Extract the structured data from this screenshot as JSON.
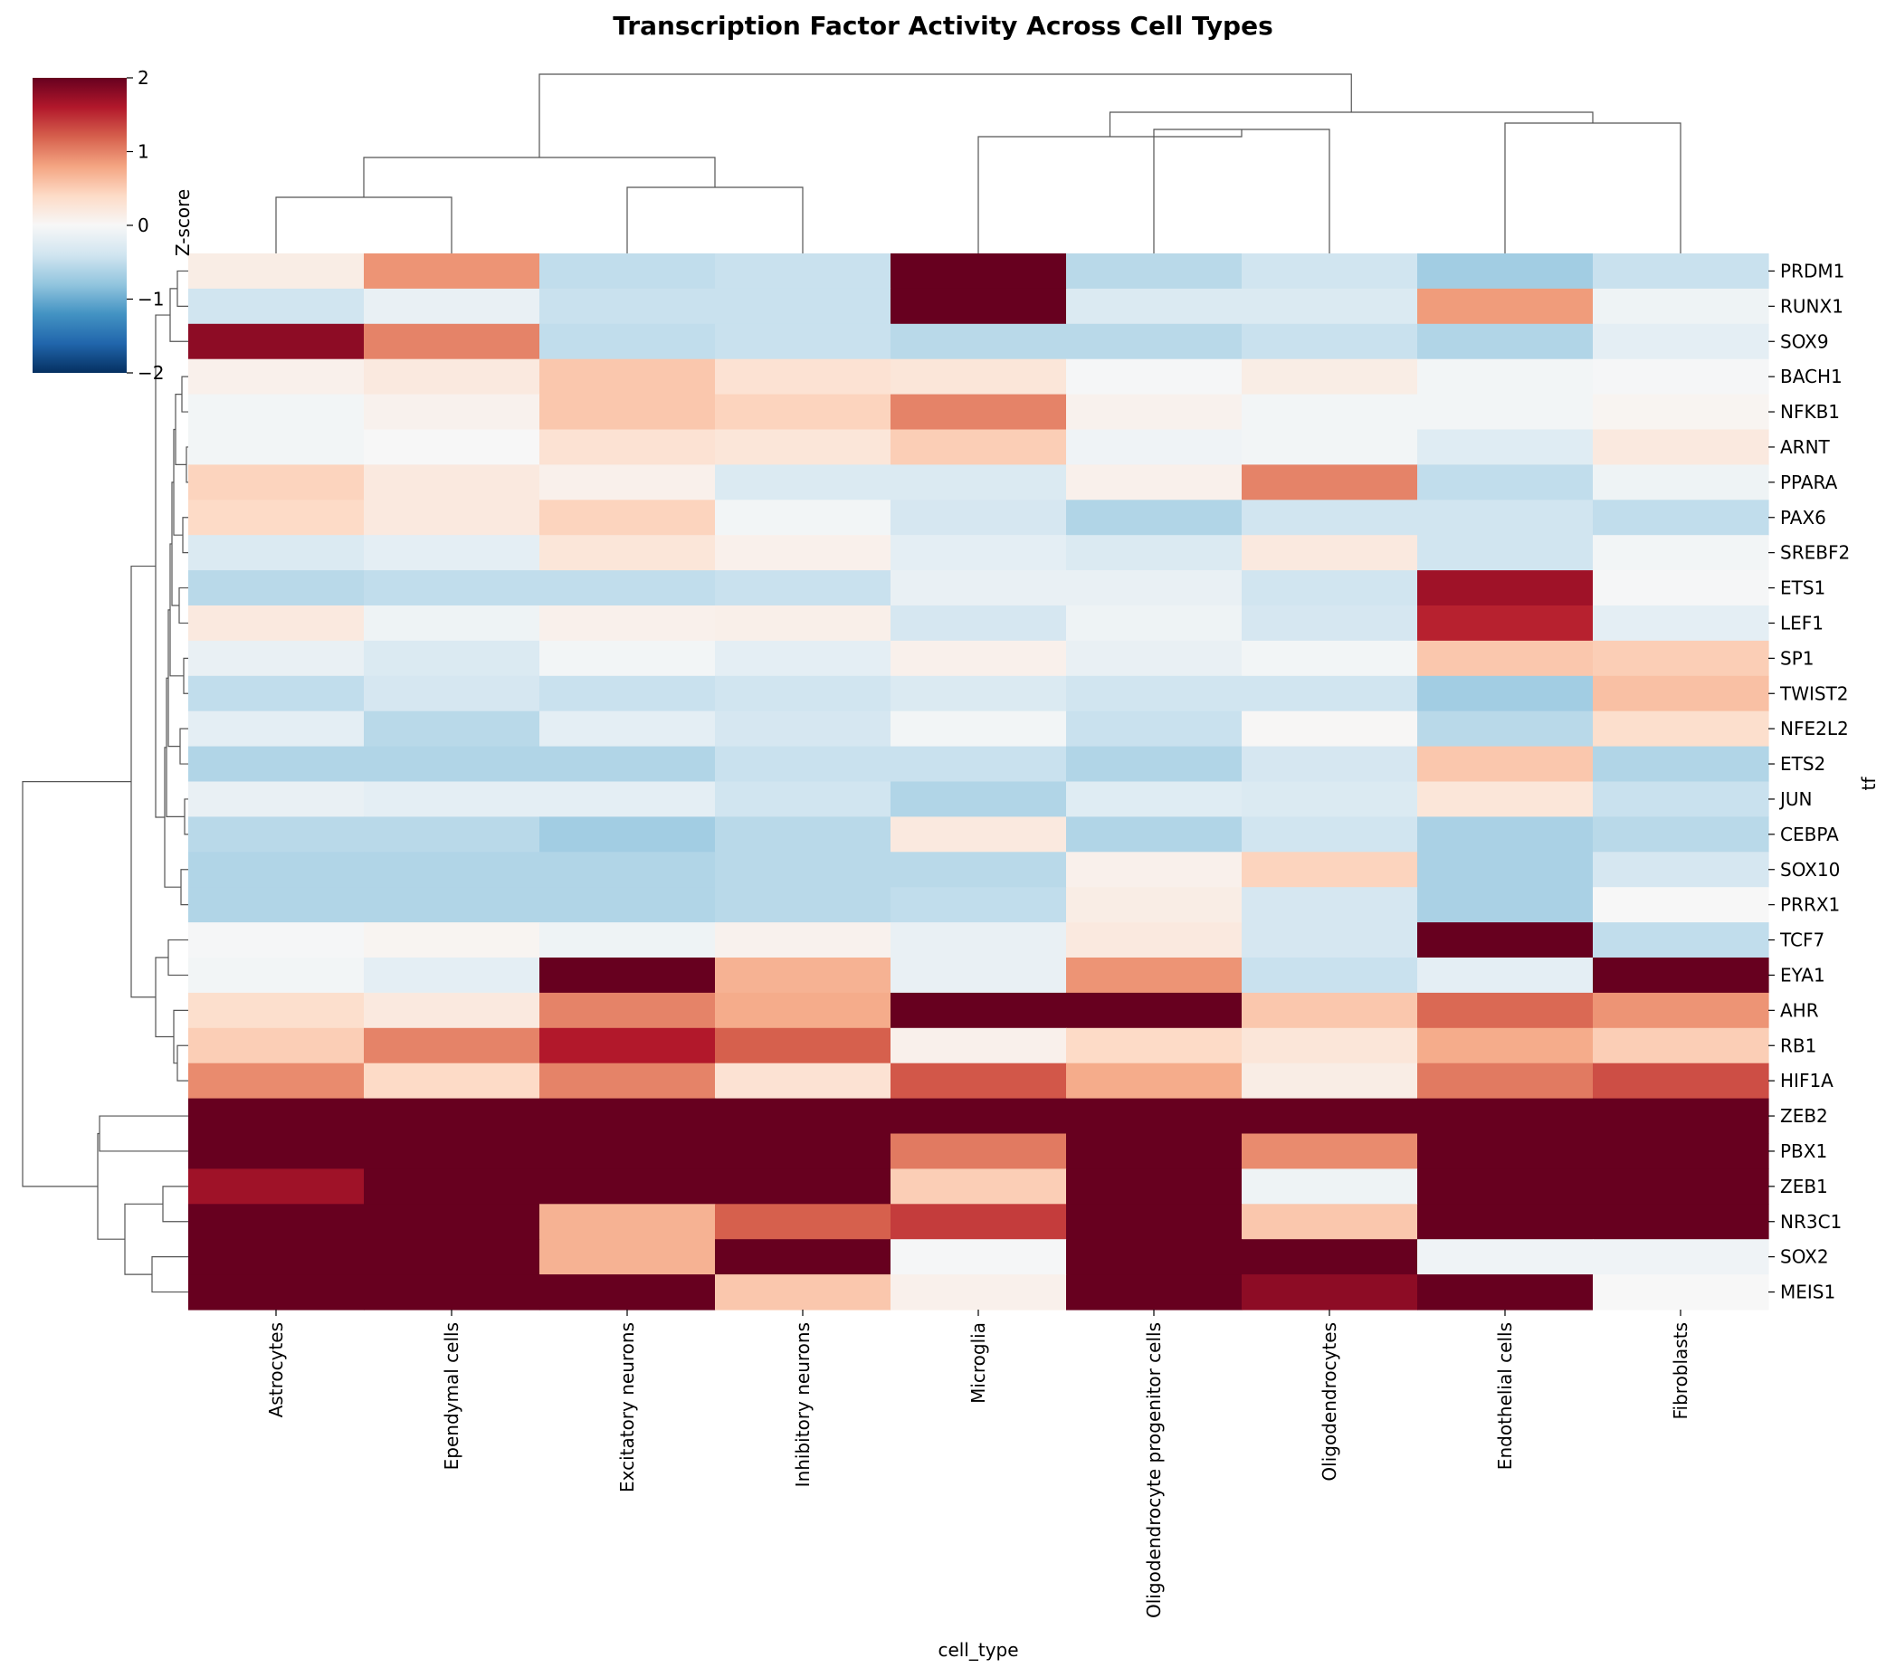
{
  "chart_data": {
    "type": "heatmap",
    "title": "Transcription Factor Activity Across Cell Types",
    "xlabel": "cell_type",
    "ylabel": "tf",
    "colorbar": {
      "label": "Z-score",
      "colormap": "RdBu_r",
      "vmin": -2,
      "vmax": 2,
      "ticks": [
        2,
        1,
        0,
        -1,
        -2
      ],
      "tick_labels": [
        "2",
        "1",
        "0",
        "−1",
        "−2"
      ]
    },
    "columns": [
      "Astrocytes",
      "Ependymal cells",
      "Excitatory neurons",
      "Inhibitory neurons",
      "Microglia",
      "Oligodendrocyte progenitor cells",
      "Oligodendrocytes",
      "Endothelial cells",
      "Fibroblasts"
    ],
    "rows": [
      "PRDM1",
      "RUNX1",
      "SOX9",
      "BACH1",
      "NFKB1",
      "ARNT",
      "PPARA",
      "PAX6",
      "SREBF2",
      "ETS1",
      "LEF1",
      "SP1",
      "TWIST2",
      "NFE2L2",
      "ETS2",
      "JUN",
      "CEBPA",
      "SOX10",
      "PRRX1",
      "TCF7",
      "EYA1",
      "AHR",
      "RB1",
      "HIF1A",
      "ZEB2",
      "PBX1",
      "ZEB1",
      "NR3C1",
      "SOX2",
      "MEIS1"
    ],
    "values": [
      [
        0.15,
        0.9,
        -0.5,
        -0.45,
        3.0,
        -0.55,
        -0.4,
        -0.7,
        -0.45
      ],
      [
        -0.4,
        -0.15,
        -0.45,
        -0.45,
        3.0,
        -0.3,
        -0.3,
        0.85,
        -0.1
      ],
      [
        1.8,
        1.0,
        -0.5,
        -0.45,
        -0.55,
        -0.55,
        -0.45,
        -0.6,
        -0.2
      ],
      [
        0.1,
        0.2,
        0.55,
        0.3,
        0.25,
        -0.02,
        0.15,
        -0.05,
        -0.02
      ],
      [
        -0.05,
        0.08,
        0.55,
        0.45,
        1.0,
        0.08,
        -0.05,
        -0.05,
        0.05
      ],
      [
        -0.05,
        0.0,
        0.3,
        0.25,
        0.5,
        -0.08,
        -0.05,
        -0.25,
        0.2
      ],
      [
        0.45,
        0.2,
        0.1,
        -0.3,
        -0.3,
        0.1,
        1.0,
        -0.5,
        -0.1
      ],
      [
        0.4,
        0.2,
        0.45,
        -0.05,
        -0.35,
        -0.6,
        -0.4,
        -0.4,
        -0.5
      ],
      [
        -0.3,
        -0.2,
        0.25,
        0.1,
        -0.2,
        -0.3,
        0.2,
        -0.4,
        -0.05
      ],
      [
        -0.55,
        -0.5,
        -0.5,
        -0.45,
        -0.15,
        -0.15,
        -0.4,
        1.7,
        -0.02
      ],
      [
        0.2,
        -0.1,
        0.1,
        0.12,
        -0.35,
        -0.1,
        -0.35,
        1.55,
        -0.2
      ],
      [
        -0.15,
        -0.3,
        -0.05,
        -0.2,
        0.1,
        -0.15,
        -0.05,
        0.55,
        0.5
      ],
      [
        -0.5,
        -0.35,
        -0.45,
        -0.4,
        -0.3,
        -0.4,
        -0.4,
        -0.7,
        0.6
      ],
      [
        -0.2,
        -0.55,
        -0.2,
        -0.35,
        -0.05,
        -0.45,
        0.02,
        -0.55,
        0.35
      ],
      [
        -0.6,
        -0.6,
        -0.6,
        -0.45,
        -0.45,
        -0.6,
        -0.35,
        0.55,
        -0.6
      ],
      [
        -0.15,
        -0.2,
        -0.2,
        -0.4,
        -0.6,
        -0.25,
        -0.3,
        0.25,
        -0.45
      ],
      [
        -0.55,
        -0.55,
        -0.7,
        -0.55,
        0.2,
        -0.6,
        -0.4,
        -0.65,
        -0.55
      ],
      [
        -0.6,
        -0.6,
        -0.6,
        -0.55,
        -0.55,
        0.1,
        0.45,
        -0.65,
        -0.35
      ],
      [
        -0.6,
        -0.6,
        -0.6,
        -0.55,
        -0.5,
        0.15,
        -0.35,
        -0.65,
        0.0
      ],
      [
        -0.02,
        0.05,
        -0.1,
        0.08,
        -0.15,
        0.2,
        -0.35,
        3.0,
        -0.5
      ],
      [
        -0.05,
        -0.2,
        2.5,
        0.7,
        -0.15,
        0.9,
        -0.45,
        -0.2,
        3.0
      ],
      [
        0.35,
        0.2,
        1.0,
        0.75,
        2.4,
        3.0,
        0.55,
        1.15,
        0.9
      ],
      [
        0.5,
        1.0,
        1.6,
        1.2,
        0.1,
        0.4,
        0.25,
        0.75,
        0.5
      ],
      [
        0.95,
        0.4,
        1.0,
        0.3,
        1.25,
        0.75,
        0.15,
        1.05,
        1.3
      ],
      [
        3.0,
        3.0,
        3.0,
        3.0,
        3.0,
        3.0,
        3.0,
        3.0,
        3.0
      ],
      [
        3.0,
        3.0,
        3.0,
        3.0,
        1.05,
        2.6,
        0.95,
        3.0,
        3.0
      ],
      [
        1.7,
        2.1,
        3.0,
        2.0,
        0.5,
        3.0,
        -0.1,
        3.0,
        3.0
      ],
      [
        3.0,
        3.0,
        0.7,
        1.2,
        1.4,
        3.0,
        0.55,
        3.0,
        3.0
      ],
      [
        3.0,
        3.0,
        0.7,
        3.0,
        -0.02,
        3.0,
        3.0,
        -0.08,
        -0.08
      ],
      [
        2.7,
        3.0,
        3.0,
        0.55,
        0.1,
        2.3,
        1.8,
        2.0,
        0.0
      ]
    ]
  }
}
